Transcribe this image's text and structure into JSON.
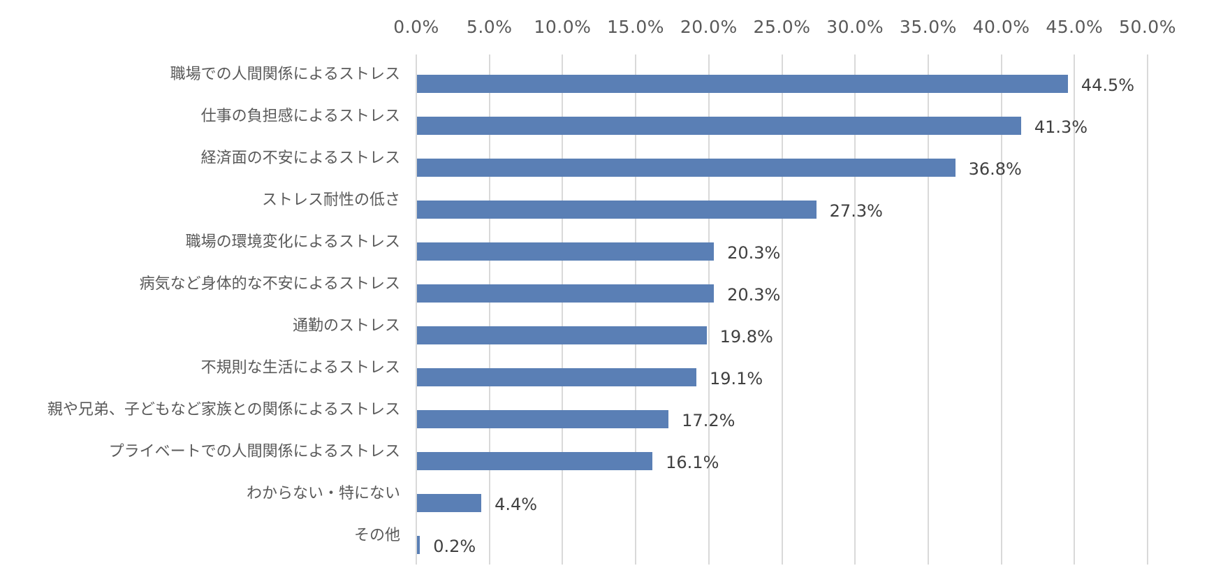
{
  "chart_data": {
    "type": "bar",
    "orientation": "horizontal",
    "title": "",
    "xlabel": "",
    "ylabel": "",
    "xlim": [
      0,
      50
    ],
    "x_ticks": [
      "0.0%",
      "5.0%",
      "10.0%",
      "15.0%",
      "20.0%",
      "25.0%",
      "30.0%",
      "35.0%",
      "40.0%",
      "45.0%",
      "50.0%"
    ],
    "x_axis_position": "top",
    "grid": "vertical",
    "legend": null,
    "bar_color": "#5a7fb5",
    "categories": [
      "職場での人間関係によるストレス",
      "仕事の負担感によるストレス",
      "経済面の不安によるストレス",
      "ストレス耐性の低さ",
      "職場の環境変化によるストレス",
      "病気など身体的な不安によるストレス",
      "通勤のストレス",
      "不規則な生活によるストレス",
      "親や兄弟、子どもなど家族との関係によるストレス",
      "プライベートでの人間関係によるストレス",
      "わからない・特にない",
      "その他"
    ],
    "values": [
      44.5,
      41.3,
      36.8,
      27.3,
      20.3,
      20.3,
      19.8,
      19.1,
      17.2,
      16.1,
      4.4,
      0.2
    ],
    "value_labels": [
      "44.5%",
      "41.3%",
      "36.8%",
      "27.3%",
      "20.3%",
      "20.3%",
      "19.8%",
      "19.1%",
      "17.2%",
      "16.1%",
      "4.4%",
      "0.2%"
    ]
  }
}
